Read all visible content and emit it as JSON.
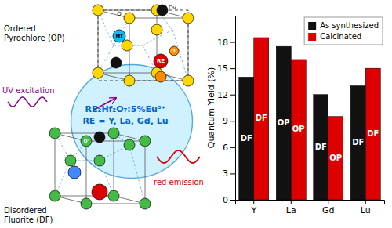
{
  "chart_data": {
    "type": "bar",
    "categories": [
      "Y",
      "La",
      "Gd",
      "Lu"
    ],
    "series": [
      {
        "name": "As synthesized",
        "color": "#111111",
        "values": [
          14.0,
          17.5,
          12.0,
          13.0
        ],
        "bar_labels": [
          "DF",
          "OP",
          "DF",
          "DF"
        ]
      },
      {
        "name": "Calcinated",
        "color": "#dd0000",
        "values": [
          18.5,
          16.0,
          9.5,
          15.0
        ],
        "bar_labels": [
          "DF",
          "OP",
          "OP",
          "DF"
        ]
      }
    ],
    "ylabel": "Quantum Yield (%)",
    "ylim": [
      0,
      21
    ],
    "yticks": [
      0,
      3,
      6,
      9,
      12,
      15,
      18
    ],
    "grid": false,
    "legend": "upper right",
    "annotations": [
      "Ordered",
      "Pyrochlore (OP)",
      "Disordered",
      "Fluorite (DF)",
      "UV excitation",
      "red emission",
      "RE₂Hf₂O₇:5%Eu³⁺",
      "RE = Y, La, Gd, Lu",
      "O",
      "Hf",
      "RE",
      "O'",
      "Ov",
      "O'"
    ]
  }
}
